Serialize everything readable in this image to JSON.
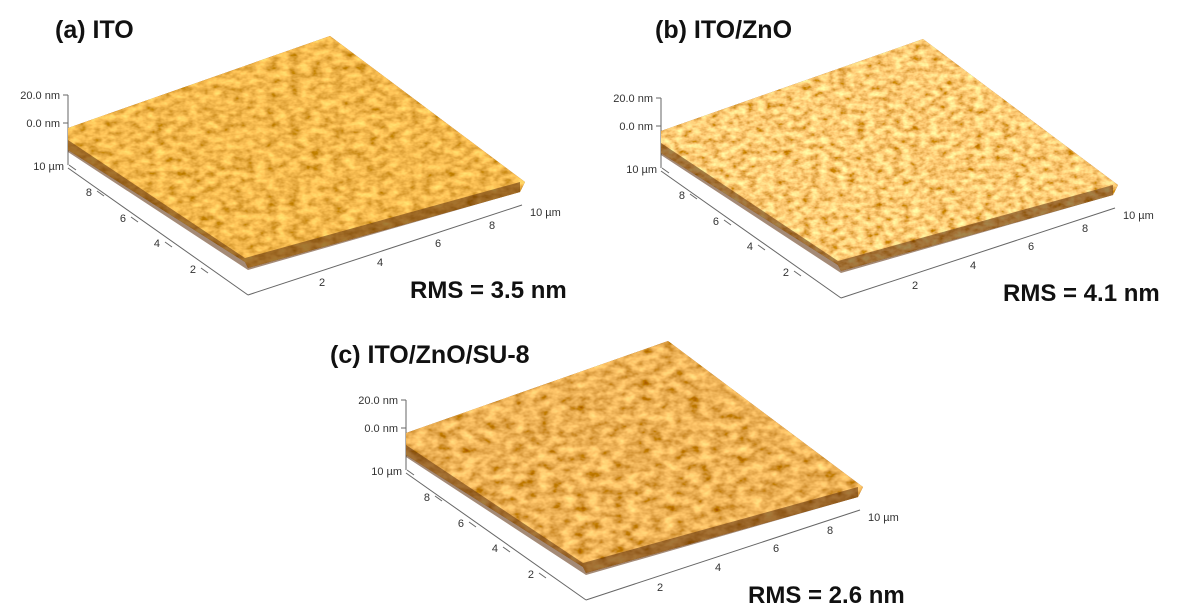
{
  "panels": [
    {
      "title": "(a) ITO",
      "z_labels": [
        "20.0 nm",
        "0.0 nm"
      ],
      "y_labels": [
        "10 µm",
        "8",
        "6",
        "4",
        "2"
      ],
      "x_labels": [
        "2",
        "4",
        "6",
        "8",
        "10 µm"
      ],
      "rms": "RMS = 3.5 nm"
    },
    {
      "title": "(b) ITO/ZnO",
      "z_labels": [
        "20.0 nm",
        "0.0 nm"
      ],
      "y_labels": [
        "10 µm",
        "8",
        "6",
        "4",
        "2"
      ],
      "x_labels": [
        "2",
        "4",
        "6",
        "8",
        "10 µm"
      ],
      "rms": "RMS = 4.1 nm"
    },
    {
      "title": "(c) ITO/ZnO/SU-8",
      "z_labels": [
        "20.0 nm",
        "0.0 nm"
      ],
      "y_labels": [
        "10 µm",
        "8",
        "6",
        "4",
        "2"
      ],
      "x_labels": [
        "2",
        "4",
        "6",
        "8",
        "10 µm"
      ],
      "rms": "RMS = 2.6 nm"
    }
  ]
}
